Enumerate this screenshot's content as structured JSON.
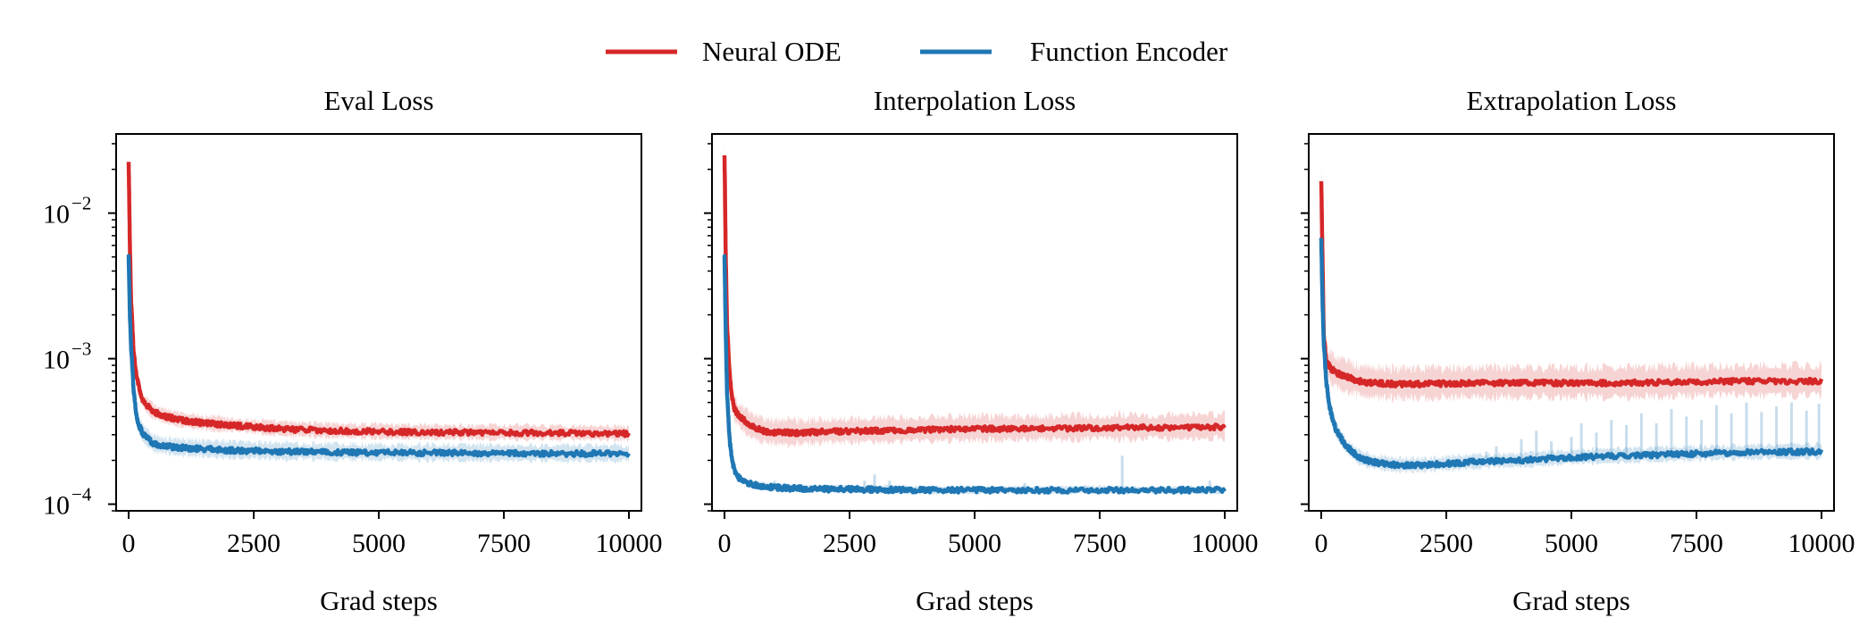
{
  "legend": {
    "placement": "top-center",
    "entries": [
      {
        "label": "Neural ODE",
        "color": "#d62728"
      },
      {
        "label": "Function Encoder",
        "color": "#1f77b4"
      }
    ]
  },
  "chart_data": [
    {
      "type": "line",
      "title": "Eval Loss",
      "xlabel": "Grad steps",
      "ylabel": "",
      "yscale": "log",
      "xlim": [
        -250,
        10250
      ],
      "ylim": [
        9e-05,
        0.035
      ],
      "xticks": [
        0,
        2500,
        5000,
        7500,
        10000
      ],
      "xtick_labels": [
        "0",
        "2500",
        "5000",
        "7500",
        "10000"
      ],
      "yticks": [
        0.0001,
        0.001,
        0.01
      ],
      "ytick_labels": [
        "10",
        "10",
        "10"
      ],
      "ytick_exponents": [
        "−4",
        "−3",
        "−2"
      ],
      "show_ytick_labels": true,
      "grid": false,
      "series": [
        {
          "name": "Neural ODE",
          "color": "#d62728",
          "x": [
            0,
            25,
            50,
            100,
            150,
            200,
            300,
            500,
            750,
            1000,
            1500,
            2000,
            2500,
            3000,
            4000,
            5000,
            6000,
            7000,
            8000,
            9000,
            10000
          ],
          "y": [
            0.022,
            0.006,
            0.0025,
            0.0011,
            0.0008,
            0.00065,
            0.0005,
            0.00043,
            0.0004,
            0.00038,
            0.00036,
            0.00035,
            0.00034,
            0.00033,
            0.00032,
            0.000315,
            0.000312,
            0.00031,
            0.00031,
            0.000308,
            0.000305
          ],
          "band_rel": 0.12,
          "spikes": []
        },
        {
          "name": "Function Encoder",
          "color": "#1f77b4",
          "x": [
            0,
            25,
            50,
            100,
            150,
            200,
            300,
            500,
            750,
            1000,
            1500,
            2000,
            2500,
            3000,
            4000,
            5000,
            6000,
            7000,
            8000,
            9000,
            10000
          ],
          "y": [
            0.005,
            0.002,
            0.0012,
            0.0006,
            0.00042,
            0.00035,
            0.0003,
            0.00026,
            0.00025,
            0.000245,
            0.00024,
            0.000235,
            0.000233,
            0.00023,
            0.000228,
            0.000226,
            0.000225,
            0.000224,
            0.000223,
            0.000223,
            0.000222
          ],
          "band_rel": 0.14,
          "spikes": []
        }
      ]
    },
    {
      "type": "line",
      "title": "Interpolation Loss",
      "xlabel": "Grad steps",
      "ylabel": "",
      "yscale": "log",
      "xlim": [
        -250,
        10250
      ],
      "ylim": [
        9e-05,
        0.035
      ],
      "xticks": [
        0,
        2500,
        5000,
        7500,
        10000
      ],
      "xtick_labels": [
        "0",
        "2500",
        "5000",
        "7500",
        "10000"
      ],
      "yticks": [
        0.0001,
        0.001,
        0.01
      ],
      "ytick_labels": [
        "",
        "",
        ""
      ],
      "ytick_exponents": [
        "",
        "",
        ""
      ],
      "show_ytick_labels": false,
      "grid": false,
      "series": [
        {
          "name": "Neural ODE",
          "color": "#d62728",
          "x": [
            0,
            25,
            50,
            100,
            150,
            200,
            300,
            500,
            750,
            1000,
            1500,
            2000,
            3000,
            4000,
            5000,
            6000,
            7000,
            8000,
            9000,
            10000
          ],
          "y": [
            0.025,
            0.005,
            0.0018,
            0.0008,
            0.00055,
            0.00045,
            0.0004,
            0.00035,
            0.00032,
            0.00031,
            0.00031,
            0.000315,
            0.00032,
            0.000325,
            0.00033,
            0.00033,
            0.000333,
            0.000335,
            0.000337,
            0.00034
          ],
          "band_rel": 0.22,
          "spikes": []
        },
        {
          "name": "Function Encoder",
          "color": "#1f77b4",
          "x": [
            0,
            25,
            50,
            100,
            150,
            200,
            300,
            500,
            750,
            1000,
            1500,
            2000,
            3000,
            4000,
            5000,
            6000,
            7000,
            8000,
            9000,
            10000
          ],
          "y": [
            0.005,
            0.0015,
            0.0006,
            0.00028,
            0.0002,
            0.00017,
            0.00015,
            0.000138,
            0.000133,
            0.00013,
            0.000128,
            0.000127,
            0.000126,
            0.000125,
            0.000125,
            0.000125,
            0.000125,
            0.000125,
            0.000125,
            0.000125
          ],
          "band_rel": 0.06,
          "spikes": [
            [
              1000,
              0.000145
            ],
            [
              2800,
              0.000145
            ],
            [
              3000,
              0.00016
            ],
            [
              3300,
              0.000145
            ],
            [
              6000,
              0.00014
            ],
            [
              7200,
              0.000135
            ],
            [
              7950,
              0.000215
            ],
            [
              9700,
              0.000145
            ]
          ]
        }
      ]
    },
    {
      "type": "line",
      "title": "Extrapolation Loss",
      "xlabel": "Grad steps",
      "ylabel": "",
      "yscale": "log",
      "xlim": [
        -250,
        10250
      ],
      "ylim": [
        9e-05,
        0.035
      ],
      "xticks": [
        0,
        2500,
        5000,
        7500,
        10000
      ],
      "xtick_labels": [
        "0",
        "2500",
        "5000",
        "7500",
        "10000"
      ],
      "yticks": [
        0.0001,
        0.001,
        0.01
      ],
      "ytick_labels": [
        "",
        "",
        ""
      ],
      "ytick_exponents": [
        "",
        "",
        ""
      ],
      "show_ytick_labels": false,
      "grid": false,
      "series": [
        {
          "name": "Neural ODE",
          "color": "#d62728",
          "x": [
            0,
            25,
            50,
            100,
            150,
            200,
            300,
            500,
            750,
            1000,
            1500,
            2000,
            3000,
            4000,
            5000,
            6000,
            7000,
            8000,
            9000,
            10000
          ],
          "y": [
            0.017,
            0.005,
            0.0015,
            0.00095,
            0.0009,
            0.00085,
            0.0008,
            0.00075,
            0.0007,
            0.00068,
            0.00067,
            0.00067,
            0.00068,
            0.00068,
            0.00068,
            0.00068,
            0.00069,
            0.0007,
            0.0007,
            0.0007
          ],
          "band_rel": 0.28,
          "spikes": []
        },
        {
          "name": "Function Encoder",
          "color": "#1f77b4",
          "x": [
            0,
            25,
            50,
            100,
            150,
            200,
            300,
            500,
            750,
            1000,
            1500,
            2000,
            2500,
            3000,
            4000,
            5000,
            6000,
            7000,
            8000,
            9000,
            10000
          ],
          "y": [
            0.0065,
            0.0025,
            0.0013,
            0.0007,
            0.0005,
            0.00042,
            0.00032,
            0.00025,
            0.00021,
            0.000195,
            0.000185,
            0.000185,
            0.00019,
            0.000195,
            0.0002,
            0.00021,
            0.000215,
            0.00022,
            0.000225,
            0.000228,
            0.00023
          ],
          "band_rel": 0.12,
          "spikes": [
            [
              3300,
              0.00023
            ],
            [
              3500,
              0.00025
            ],
            [
              4000,
              0.00028
            ],
            [
              4300,
              0.00032
            ],
            [
              4600,
              0.00027
            ],
            [
              5000,
              0.00029
            ],
            [
              5200,
              0.00036
            ],
            [
              5500,
              0.00031
            ],
            [
              5800,
              0.00038
            ],
            [
              6100,
              0.00035
            ],
            [
              6400,
              0.00042
            ],
            [
              6700,
              0.00036
            ],
            [
              7000,
              0.00045
            ],
            [
              7300,
              0.0004
            ],
            [
              7600,
              0.00038
            ],
            [
              7900,
              0.00048
            ],
            [
              8200,
              0.00042
            ],
            [
              8500,
              0.0005
            ],
            [
              8800,
              0.00043
            ],
            [
              9100,
              0.00047
            ],
            [
              9400,
              0.0005
            ],
            [
              9700,
              0.00044
            ],
            [
              9950,
              0.00049
            ]
          ]
        }
      ]
    }
  ]
}
